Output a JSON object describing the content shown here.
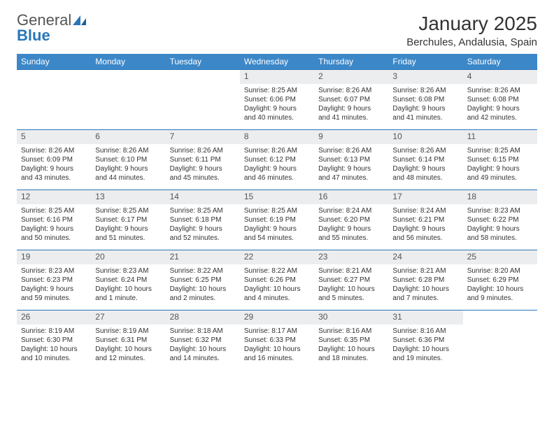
{
  "logo": {
    "text1": "General",
    "text2": "Blue"
  },
  "title": "January 2025",
  "location": "Berchules, Andalusia, Spain",
  "colors": {
    "header_bg": "#3b87c8",
    "header_text": "#ffffff",
    "daynum_bg": "#ecedee",
    "rule": "#2976b9",
    "brand_gray": "#666666",
    "brand_blue": "#2976b9"
  },
  "weekdays": [
    "Sunday",
    "Monday",
    "Tuesday",
    "Wednesday",
    "Thursday",
    "Friday",
    "Saturday"
  ],
  "weeks": [
    [
      null,
      null,
      null,
      {
        "n": "1",
        "sr": "8:25 AM",
        "ss": "6:06 PM",
        "dl": "9 hours and 40 minutes."
      },
      {
        "n": "2",
        "sr": "8:26 AM",
        "ss": "6:07 PM",
        "dl": "9 hours and 41 minutes."
      },
      {
        "n": "3",
        "sr": "8:26 AM",
        "ss": "6:08 PM",
        "dl": "9 hours and 41 minutes."
      },
      {
        "n": "4",
        "sr": "8:26 AM",
        "ss": "6:08 PM",
        "dl": "9 hours and 42 minutes."
      }
    ],
    [
      {
        "n": "5",
        "sr": "8:26 AM",
        "ss": "6:09 PM",
        "dl": "9 hours and 43 minutes."
      },
      {
        "n": "6",
        "sr": "8:26 AM",
        "ss": "6:10 PM",
        "dl": "9 hours and 44 minutes."
      },
      {
        "n": "7",
        "sr": "8:26 AM",
        "ss": "6:11 PM",
        "dl": "9 hours and 45 minutes."
      },
      {
        "n": "8",
        "sr": "8:26 AM",
        "ss": "6:12 PM",
        "dl": "9 hours and 46 minutes."
      },
      {
        "n": "9",
        "sr": "8:26 AM",
        "ss": "6:13 PM",
        "dl": "9 hours and 47 minutes."
      },
      {
        "n": "10",
        "sr": "8:26 AM",
        "ss": "6:14 PM",
        "dl": "9 hours and 48 minutes."
      },
      {
        "n": "11",
        "sr": "8:25 AM",
        "ss": "6:15 PM",
        "dl": "9 hours and 49 minutes."
      }
    ],
    [
      {
        "n": "12",
        "sr": "8:25 AM",
        "ss": "6:16 PM",
        "dl": "9 hours and 50 minutes."
      },
      {
        "n": "13",
        "sr": "8:25 AM",
        "ss": "6:17 PM",
        "dl": "9 hours and 51 minutes."
      },
      {
        "n": "14",
        "sr": "8:25 AM",
        "ss": "6:18 PM",
        "dl": "9 hours and 52 minutes."
      },
      {
        "n": "15",
        "sr": "8:25 AM",
        "ss": "6:19 PM",
        "dl": "9 hours and 54 minutes."
      },
      {
        "n": "16",
        "sr": "8:24 AM",
        "ss": "6:20 PM",
        "dl": "9 hours and 55 minutes."
      },
      {
        "n": "17",
        "sr": "8:24 AM",
        "ss": "6:21 PM",
        "dl": "9 hours and 56 minutes."
      },
      {
        "n": "18",
        "sr": "8:23 AM",
        "ss": "6:22 PM",
        "dl": "9 hours and 58 minutes."
      }
    ],
    [
      {
        "n": "19",
        "sr": "8:23 AM",
        "ss": "6:23 PM",
        "dl": "9 hours and 59 minutes."
      },
      {
        "n": "20",
        "sr": "8:23 AM",
        "ss": "6:24 PM",
        "dl": "10 hours and 1 minute."
      },
      {
        "n": "21",
        "sr": "8:22 AM",
        "ss": "6:25 PM",
        "dl": "10 hours and 2 minutes."
      },
      {
        "n": "22",
        "sr": "8:22 AM",
        "ss": "6:26 PM",
        "dl": "10 hours and 4 minutes."
      },
      {
        "n": "23",
        "sr": "8:21 AM",
        "ss": "6:27 PM",
        "dl": "10 hours and 5 minutes."
      },
      {
        "n": "24",
        "sr": "8:21 AM",
        "ss": "6:28 PM",
        "dl": "10 hours and 7 minutes."
      },
      {
        "n": "25",
        "sr": "8:20 AM",
        "ss": "6:29 PM",
        "dl": "10 hours and 9 minutes."
      }
    ],
    [
      {
        "n": "26",
        "sr": "8:19 AM",
        "ss": "6:30 PM",
        "dl": "10 hours and 10 minutes."
      },
      {
        "n": "27",
        "sr": "8:19 AM",
        "ss": "6:31 PM",
        "dl": "10 hours and 12 minutes."
      },
      {
        "n": "28",
        "sr": "8:18 AM",
        "ss": "6:32 PM",
        "dl": "10 hours and 14 minutes."
      },
      {
        "n": "29",
        "sr": "8:17 AM",
        "ss": "6:33 PM",
        "dl": "10 hours and 16 minutes."
      },
      {
        "n": "30",
        "sr": "8:16 AM",
        "ss": "6:35 PM",
        "dl": "10 hours and 18 minutes."
      },
      {
        "n": "31",
        "sr": "8:16 AM",
        "ss": "6:36 PM",
        "dl": "10 hours and 19 minutes."
      },
      null
    ]
  ],
  "labels": {
    "sunrise": "Sunrise:",
    "sunset": "Sunset:",
    "daylight": "Daylight:"
  }
}
